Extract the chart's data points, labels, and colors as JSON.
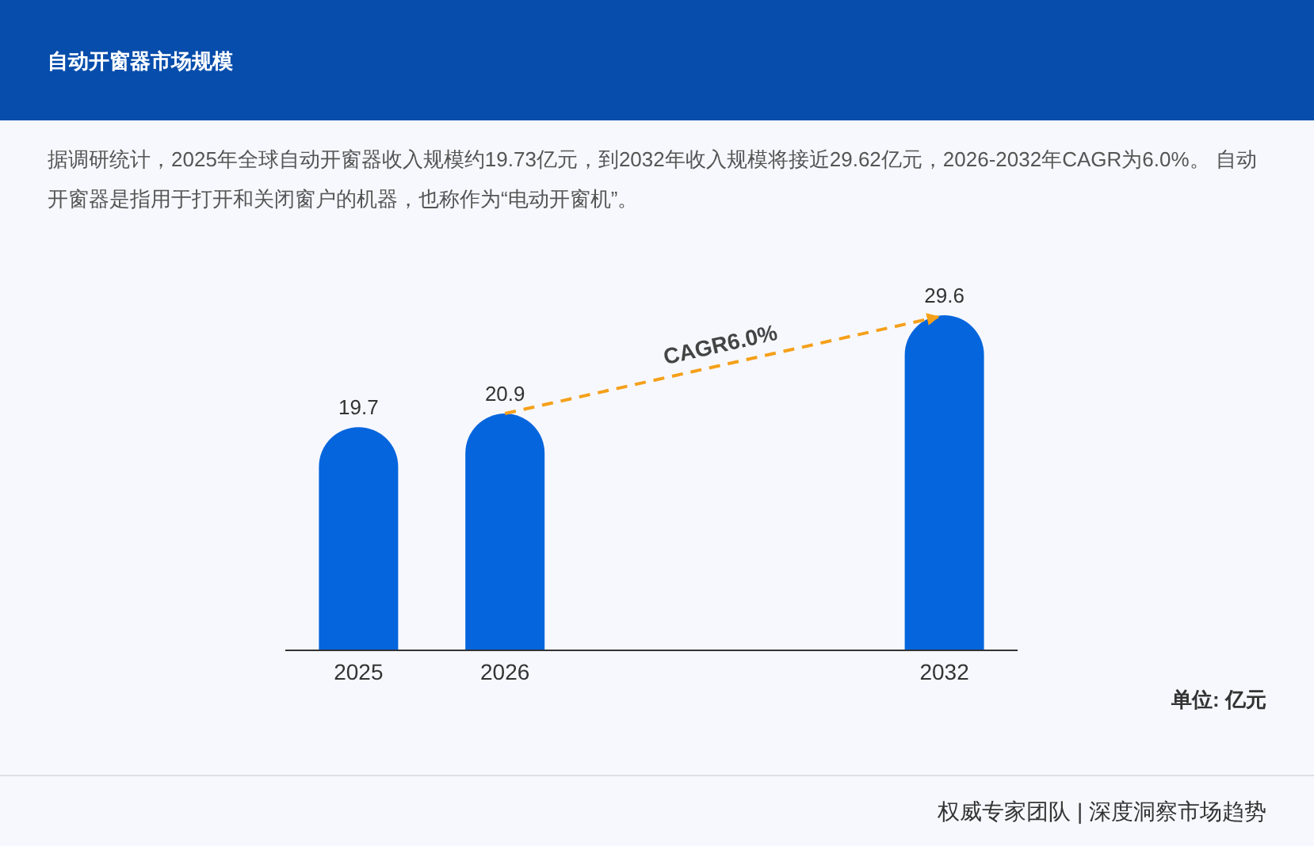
{
  "chart_data": {
    "type": "bar",
    "title": "自动开窗器市场规模",
    "subtitle": "据调研统计，2025年全球自动开窗器收入规模约19.73亿元，到2032年收入规模将接近29.62亿元，2026-2032年CAGR为6.0%。 自动开窗器是指用于打开和关闭窗户的机器，也称作为“电动开窗机”。",
    "categories": [
      "2025",
      "2026",
      null,
      null,
      "2032"
    ],
    "values": [
      19.7,
      20.9,
      null,
      null,
      29.6
    ],
    "color": "#0565dd",
    "data_labels": true,
    "annotations": [
      "CAGR6.0%",
      "单位: 亿元",
      "权威专家团队 | 深度洞察市场趋势"
    ]
  }
}
